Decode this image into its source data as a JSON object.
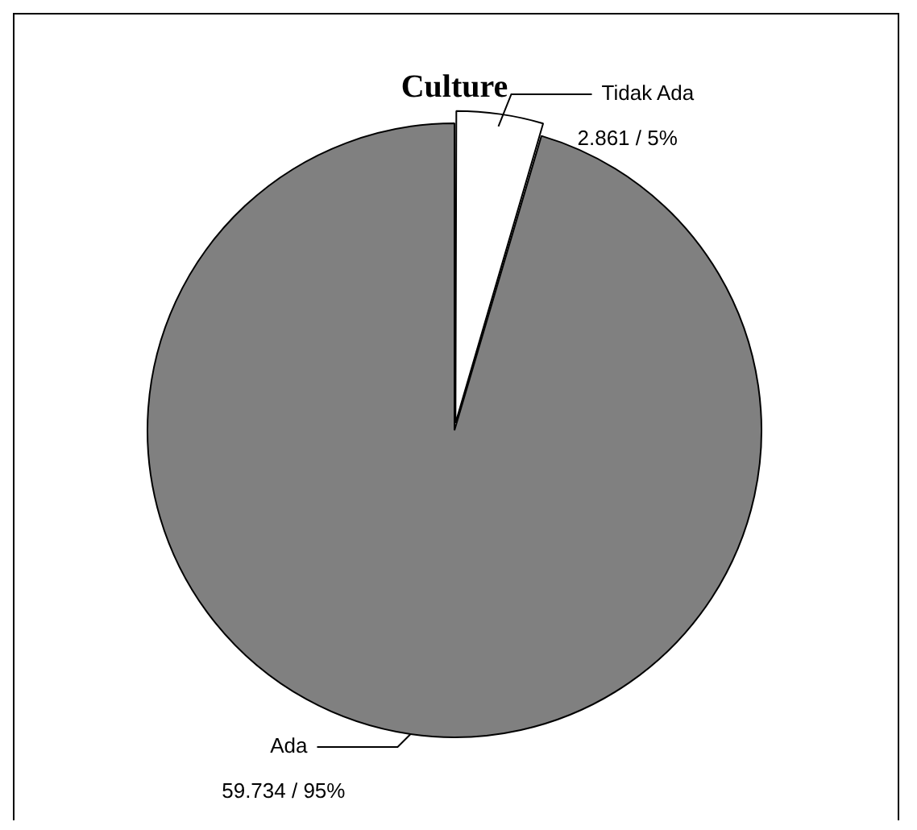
{
  "chart_data": {
    "type": "pie",
    "title": "Culture",
    "categories": [
      "Tidak Ada",
      "Ada"
    ],
    "values": [
      2.861,
      59.734
    ],
    "colors": [
      "#ffffff",
      "#808080"
    ],
    "value_labels": [
      "2.861 / 5%",
      "59.734 / 95%"
    ],
    "legend": false
  }
}
